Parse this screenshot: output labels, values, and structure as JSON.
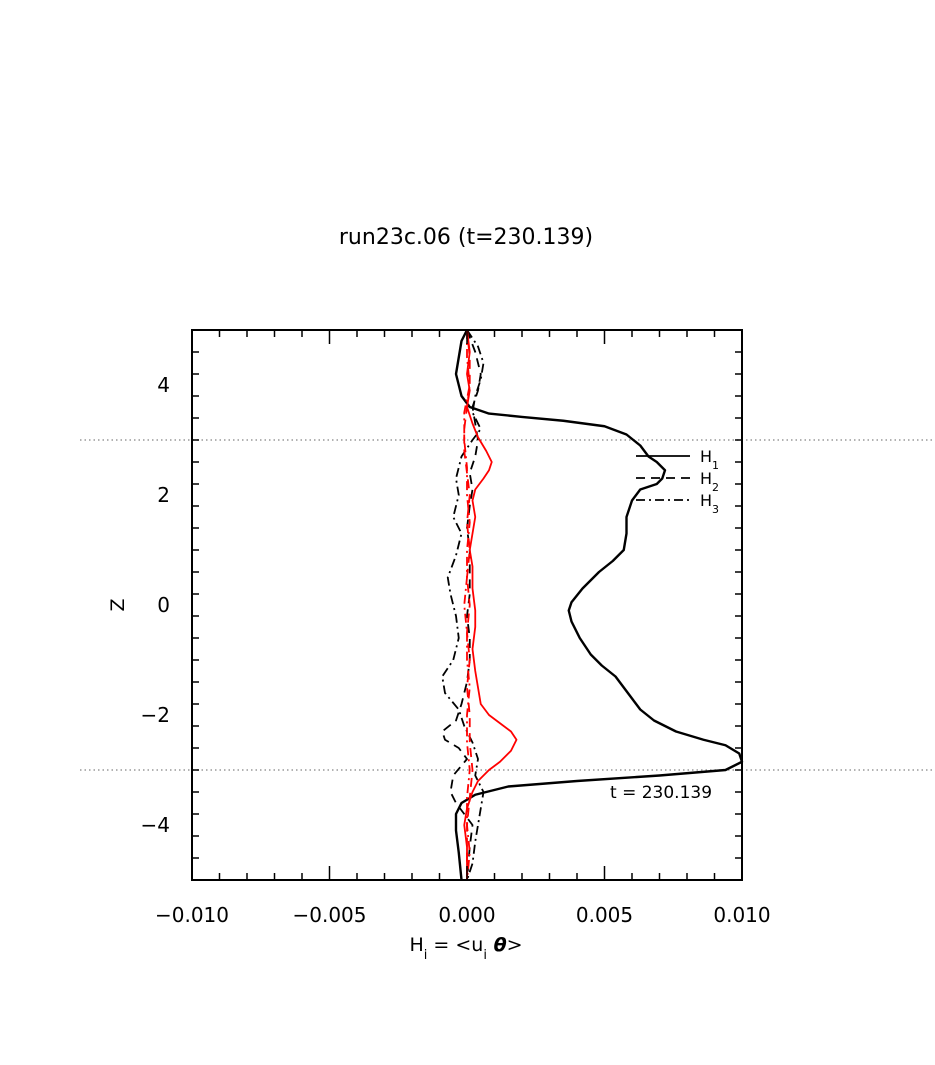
{
  "chart_data": {
    "type": "line",
    "title": "run23c.06 (t=230.139)",
    "xlabel": "H_i = <u_i θ>",
    "xlabel_parts": {
      "main": "H",
      "sub": "i",
      "eq": " = <u",
      "sub2": "i",
      "theta": " θ",
      "close": ">"
    },
    "ylabel": "Z",
    "xlim": [
      -0.01,
      0.01
    ],
    "ylim": [
      -5,
      5
    ],
    "x_ticks": [
      -0.01,
      -0.005,
      0.0,
      0.005,
      0.01
    ],
    "x_tick_labels": [
      "−0.010",
      "−0.005",
      "0.000",
      "0.005",
      "0.010"
    ],
    "y_ticks": [
      -4,
      -2,
      0,
      2,
      4
    ],
    "y_tick_labels": [
      "−4",
      "−2",
      "0",
      "2",
      "4"
    ],
    "reference_lines_z": [
      3,
      -3
    ],
    "annotation": "t = 230.139",
    "legend": [
      {
        "main": "H",
        "sub": "1",
        "style": "solid"
      },
      {
        "main": "H",
        "sub": "2",
        "style": "dashed"
      },
      {
        "main": "H",
        "sub": "3",
        "style": "dashdot"
      }
    ],
    "series": [
      {
        "key": "H1",
        "color": "#000000",
        "style": "solid",
        "points": [
          [
            0.0,
            5.0
          ],
          [
            -0.0002,
            4.8
          ],
          [
            -0.0003,
            4.5
          ],
          [
            -0.0004,
            4.2
          ],
          [
            -0.0003,
            4.0
          ],
          [
            -0.0002,
            3.8
          ],
          [
            0.0001,
            3.6
          ],
          [
            0.0008,
            3.48
          ],
          [
            0.002,
            3.42
          ],
          [
            0.0035,
            3.35
          ],
          [
            0.005,
            3.25
          ],
          [
            0.0058,
            3.1
          ],
          [
            0.0063,
            2.9
          ],
          [
            0.0066,
            2.7
          ],
          [
            0.0069,
            2.6
          ],
          [
            0.0072,
            2.45
          ],
          [
            0.0071,
            2.3
          ],
          [
            0.0069,
            2.2
          ],
          [
            0.0063,
            2.1
          ],
          [
            0.006,
            1.9
          ],
          [
            0.0058,
            1.6
          ],
          [
            0.0058,
            1.3
          ],
          [
            0.0057,
            1.0
          ],
          [
            0.0053,
            0.8
          ],
          [
            0.0048,
            0.6
          ],
          [
            0.0042,
            0.3
          ],
          [
            0.0038,
            0.05
          ],
          [
            0.0037,
            -0.1
          ],
          [
            0.0038,
            -0.3
          ],
          [
            0.0041,
            -0.6
          ],
          [
            0.0045,
            -0.9
          ],
          [
            0.0049,
            -1.1
          ],
          [
            0.0054,
            -1.3
          ],
          [
            0.0057,
            -1.5
          ],
          [
            0.006,
            -1.7
          ],
          [
            0.0063,
            -1.9
          ],
          [
            0.0068,
            -2.1
          ],
          [
            0.0076,
            -2.3
          ],
          [
            0.0086,
            -2.45
          ],
          [
            0.0094,
            -2.55
          ],
          [
            0.0099,
            -2.7
          ],
          [
            0.01,
            -2.85
          ],
          [
            0.0094,
            -3.0
          ],
          [
            0.007,
            -3.1
          ],
          [
            0.004,
            -3.2
          ],
          [
            0.0015,
            -3.3
          ],
          [
            0.0003,
            -3.45
          ],
          [
            -0.0002,
            -3.6
          ],
          [
            -0.0004,
            -3.8
          ],
          [
            -0.0004,
            -4.1
          ],
          [
            -0.0003,
            -4.5
          ],
          [
            -0.0002,
            -5.0
          ]
        ]
      },
      {
        "key": "H2",
        "color": "#000000",
        "style": "dashed",
        "points": [
          [
            0.0,
            5.0
          ],
          [
            0.0003,
            4.6
          ],
          [
            0.0005,
            4.2
          ],
          [
            0.0004,
            3.9
          ],
          [
            0.0002,
            3.6
          ],
          [
            0.0003,
            3.3
          ],
          [
            0.0004,
            3.0
          ],
          [
            0.0003,
            2.7
          ],
          [
            0.0001,
            2.4
          ],
          [
            0.0002,
            2.1
          ],
          [
            0.0001,
            1.8
          ],
          [
            0.0,
            1.4
          ],
          [
            0.0001,
            1.0
          ],
          [
            0.0001,
            0.6
          ],
          [
            0.0001,
            0.2
          ],
          [
            0.0,
            -0.2
          ],
          [
            0.0001,
            -0.6
          ],
          [
            0.0001,
            -1.0
          ],
          [
            0.0,
            -1.4
          ],
          [
            -0.0002,
            -1.8
          ],
          [
            -0.0004,
            -2.1
          ],
          [
            -0.0009,
            -2.3
          ],
          [
            -0.0008,
            -2.45
          ],
          [
            -0.0003,
            -2.6
          ],
          [
            0.0,
            -2.8
          ],
          [
            -0.0005,
            -3.1
          ],
          [
            -0.0006,
            -3.4
          ],
          [
            -0.0004,
            -3.6
          ],
          [
            -0.0001,
            -3.8
          ],
          [
            0.0002,
            -4.0
          ],
          [
            0.0001,
            -4.4
          ],
          [
            0.0,
            -5.0
          ]
        ]
      },
      {
        "key": "H3",
        "color": "#000000",
        "style": "dashdot",
        "points": [
          [
            0.0,
            5.0
          ],
          [
            0.0004,
            4.7
          ],
          [
            0.0006,
            4.4
          ],
          [
            0.0005,
            4.1
          ],
          [
            0.0003,
            3.8
          ],
          [
            0.0002,
            3.5
          ],
          [
            0.0005,
            3.2
          ],
          [
            0.0002,
            3.0
          ],
          [
            -0.0002,
            2.7
          ],
          [
            -0.0004,
            2.3
          ],
          [
            -0.0003,
            2.0
          ],
          [
            -0.0005,
            1.6
          ],
          [
            -0.0002,
            1.3
          ],
          [
            -0.0004,
            0.9
          ],
          [
            -0.0007,
            0.5
          ],
          [
            -0.0006,
            0.2
          ],
          [
            -0.0004,
            -0.2
          ],
          [
            -0.0003,
            -0.6
          ],
          [
            -0.0005,
            -1.0
          ],
          [
            -0.0009,
            -1.3
          ],
          [
            -0.0008,
            -1.6
          ],
          [
            -0.0003,
            -1.9
          ],
          [
            -0.0001,
            -2.2
          ],
          [
            0.0002,
            -2.5
          ],
          [
            0.0004,
            -2.8
          ],
          [
            0.0003,
            -3.1
          ],
          [
            0.0006,
            -3.4
          ],
          [
            0.0005,
            -3.7
          ],
          [
            0.0004,
            -4.0
          ],
          [
            0.0003,
            -4.3
          ],
          [
            0.0002,
            -4.7
          ],
          [
            0.0,
            -5.0
          ]
        ]
      },
      {
        "key": "H1_red",
        "color": "#ff0000",
        "style": "solid",
        "points": [
          [
            0.0,
            5.0
          ],
          [
            0.0001,
            4.6
          ],
          [
            0.0,
            4.2
          ],
          [
            0.0001,
            3.9
          ],
          [
            0.0,
            3.6
          ],
          [
            0.0002,
            3.3
          ],
          [
            0.0004,
            3.05
          ],
          [
            0.0007,
            2.8
          ],
          [
            0.0009,
            2.6
          ],
          [
            0.0008,
            2.45
          ],
          [
            0.0006,
            2.3
          ],
          [
            0.0003,
            2.1
          ],
          [
            0.0002,
            1.9
          ],
          [
            0.0003,
            1.6
          ],
          [
            0.0002,
            1.3
          ],
          [
            0.0001,
            1.0
          ],
          [
            0.0002,
            0.7
          ],
          [
            0.0002,
            0.3
          ],
          [
            0.0003,
            -0.1
          ],
          [
            0.0003,
            -0.4
          ],
          [
            0.0002,
            -0.8
          ],
          [
            0.0003,
            -1.2
          ],
          [
            0.0004,
            -1.5
          ],
          [
            0.0005,
            -1.8
          ],
          [
            0.0008,
            -2.0
          ],
          [
            0.0012,
            -2.15
          ],
          [
            0.0016,
            -2.3
          ],
          [
            0.0018,
            -2.45
          ],
          [
            0.0016,
            -2.65
          ],
          [
            0.0012,
            -2.85
          ],
          [
            0.0008,
            -3.0
          ],
          [
            0.0004,
            -3.2
          ],
          [
            0.0002,
            -3.4
          ],
          [
            0.0,
            -3.7
          ],
          [
            -0.0001,
            -4.0
          ],
          [
            0.0,
            -4.4
          ],
          [
            0.0,
            -5.0
          ]
        ]
      },
      {
        "key": "H2_red",
        "color": "#ff0000",
        "style": "dashed",
        "points": [
          [
            0.0,
            5.0
          ],
          [
            0.0001,
            4.5
          ],
          [
            0.0001,
            4.0
          ],
          [
            0.0,
            3.6
          ],
          [
            -0.0001,
            3.2
          ],
          [
            -0.0001,
            2.8
          ],
          [
            0.0,
            2.4
          ],
          [
            0.0001,
            2.0
          ],
          [
            0.0,
            1.5
          ],
          [
            0.0001,
            1.0
          ],
          [
            0.0,
            0.5
          ],
          [
            0.0001,
            0.0
          ],
          [
            0.0,
            -0.5
          ],
          [
            0.0001,
            -1.0
          ],
          [
            0.0,
            -1.5
          ],
          [
            0.0001,
            -2.0
          ],
          [
            0.0001,
            -2.5
          ],
          [
            0.0002,
            -3.0
          ],
          [
            0.0001,
            -3.5
          ],
          [
            0.0,
            -4.0
          ],
          [
            0.0,
            -4.5
          ],
          [
            0.0,
            -5.0
          ]
        ]
      },
      {
        "key": "H3_red",
        "color": "#ff0000",
        "style": "dashdot",
        "points": [
          [
            0.0,
            5.0
          ],
          [
            0.0,
            4.5
          ],
          [
            0.0001,
            4.0
          ],
          [
            -0.0001,
            3.5
          ],
          [
            -0.0001,
            3.0
          ],
          [
            0.0,
            2.5
          ],
          [
            0.0,
            2.0
          ],
          [
            0.0001,
            1.5
          ],
          [
            0.0,
            1.0
          ],
          [
            0.0,
            0.5
          ],
          [
            -0.0001,
            0.0
          ],
          [
            0.0,
            -0.5
          ],
          [
            0.0,
            -1.0
          ],
          [
            0.0001,
            -1.5
          ],
          [
            0.0,
            -2.0
          ],
          [
            0.0,
            -2.5
          ],
          [
            0.0001,
            -3.0
          ],
          [
            0.0,
            -3.5
          ],
          [
            0.0,
            -4.0
          ],
          [
            0.0001,
            -4.5
          ],
          [
            0.0,
            -5.0
          ]
        ]
      }
    ]
  }
}
